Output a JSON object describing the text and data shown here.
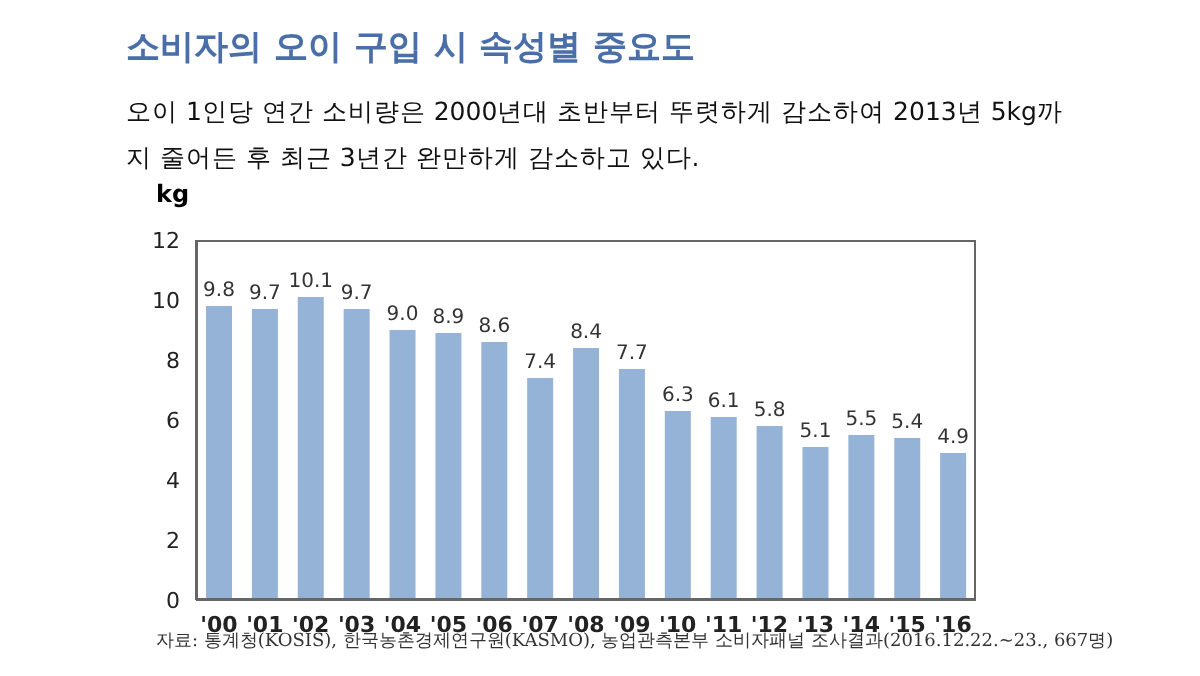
{
  "chart_data": {
    "type": "bar",
    "title": "소비자의 오이 구입 시 속성별 중요도",
    "subtitle": "오이 1인당 연간 소비량은 2000년대 초반부터 뚜렷하게 감소하여 2013년 5kg까지 줄어든 후 최근 3년간 완만하게 감소하고 있다.",
    "ylabel": "kg",
    "categories": [
      "'00",
      "'01",
      "'02",
      "'03",
      "'04",
      "'05",
      "'06",
      "'07",
      "'08",
      "'09",
      "'10",
      "'11",
      "'12",
      "'13",
      "'14",
      "'15",
      "'16"
    ],
    "values": [
      9.8,
      9.7,
      10.1,
      9.7,
      9.0,
      8.9,
      8.6,
      7.4,
      8.4,
      7.7,
      6.3,
      6.1,
      5.8,
      5.1,
      5.5,
      5.4,
      4.9
    ],
    "value_labels": [
      "9.8",
      "9.7",
      "10.1",
      "9.7",
      "9.0",
      "8.9",
      "8.6",
      "7.4",
      "8.4",
      "7.7",
      "6.3",
      "6.1",
      "5.8",
      "5.1",
      "5.5",
      "5.4",
      "4.9"
    ],
    "color": "#95b3d7",
    "ylim": [
      0,
      12
    ],
    "yticks": [
      0,
      2,
      4,
      6,
      8,
      10,
      12
    ],
    "grid": false,
    "annotations": [
      "자료: 통계청(KOSIS), 한국농촌경제연구원(KASMO), 농업관측본부 소비자패널 조사결과(2016.12.22.~23., 667명)"
    ]
  }
}
